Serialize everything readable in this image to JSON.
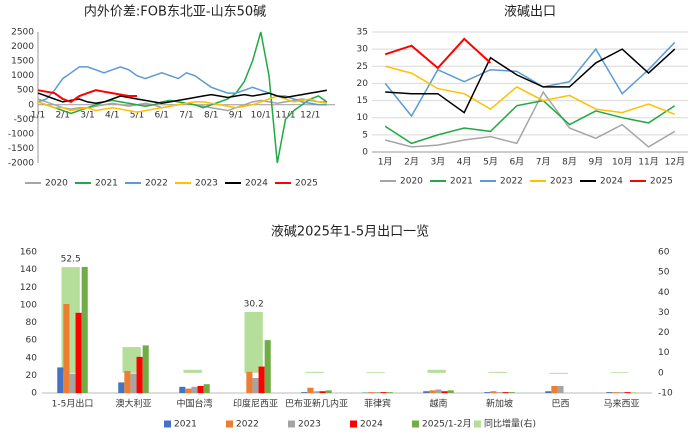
{
  "chart_data": [
    {
      "type": "line",
      "title": "内外价差:FOB东北亚-山东50碱",
      "categories": [
        "1/1",
        null,
        null,
        "2/1",
        null,
        null,
        "3/1",
        null,
        null,
        "4/1",
        null,
        null,
        "5/1",
        null,
        null,
        "6/1",
        null,
        null,
        "7/1",
        null,
        null,
        "8/1",
        null,
        null,
        "9/1",
        null,
        null,
        "10/1",
        null,
        null,
        "11/1",
        null,
        null,
        "12/1",
        null,
        null
      ],
      "ylim": [
        -2000,
        2500
      ],
      "yticks": [
        -2000,
        -1500,
        -1000,
        -500,
        0,
        500,
        1000,
        1500,
        2000,
        2500
      ],
      "grid": false,
      "series": [
        {
          "name": "2020",
          "color": "#a5a5a5",
          "values": [
            200,
            100,
            0,
            -100,
            -150,
            -100,
            -100,
            -50,
            0,
            50,
            0,
            -50,
            0,
            50,
            0,
            -100,
            -50,
            0,
            50,
            0,
            -50,
            -100,
            -150,
            -200,
            -100,
            0,
            100,
            150,
            100,
            50,
            100,
            150,
            200,
            150,
            100,
            100
          ]
        },
        {
          "name": "2021",
          "color": "#22a845",
          "values": [
            100,
            0,
            -100,
            -200,
            -300,
            -200,
            -100,
            0,
            100,
            150,
            100,
            50,
            0,
            -50,
            0,
            100,
            150,
            100,
            50,
            0,
            -100,
            0,
            100,
            200,
            400,
            800,
            1500,
            2500,
            1000,
            -2000,
            -500,
            -200,
            0,
            200,
            300,
            100
          ]
        },
        {
          "name": "2022",
          "color": "#5b9bd5",
          "values": [
            100,
            200,
            500,
            900,
            1100,
            1300,
            1300,
            1200,
            1100,
            1200,
            1300,
            1200,
            1000,
            900,
            1000,
            1100,
            1000,
            900,
            1100,
            1000,
            800,
            600,
            500,
            400,
            400,
            500,
            600,
            500,
            400,
            300,
            300,
            200,
            100,
            50,
            0,
            0
          ]
        },
        {
          "name": "2023",
          "color": "#ffc000",
          "values": [
            100,
            0,
            -100,
            -100,
            -200,
            -150,
            -100,
            -200,
            -150,
            -100,
            -150,
            -200,
            -250,
            -200,
            -150,
            -100,
            -50,
            0,
            50,
            100,
            100,
            50,
            0,
            -50,
            -100,
            -50,
            0,
            100,
            200,
            300,
            200,
            100,
            150,
            200,
            100,
            50
          ]
        },
        {
          "name": "2024",
          "color": "#000000",
          "values": [
            400,
            300,
            200,
            100,
            150,
            200,
            100,
            50,
            100,
            200,
            300,
            250,
            200,
            150,
            100,
            50,
            100,
            150,
            200,
            250,
            300,
            350,
            300,
            250,
            300,
            350,
            300,
            350,
            400,
            300,
            250,
            300,
            350,
            400,
            450,
            500
          ]
        },
        {
          "name": "2025",
          "color": "#ff0000",
          "values": [
            500,
            450,
            400,
            200,
            100,
            300,
            400,
            500,
            450,
            400,
            350,
            300,
            300,
            null,
            null,
            null,
            null,
            null,
            null,
            null,
            null,
            null,
            null,
            null,
            null,
            null,
            null,
            null,
            null,
            null,
            null,
            null,
            null,
            null,
            null,
            null
          ]
        }
      ]
    },
    {
      "type": "line",
      "title": "液碱出口",
      "categories": [
        "1月",
        "2月",
        "3月",
        "4月",
        "5月",
        "6月",
        "7月",
        "8月",
        "9月",
        "10月",
        "11月",
        "12月"
      ],
      "ylim": [
        0,
        35
      ],
      "yticks": [
        0,
        5,
        10,
        15,
        20,
        25,
        30,
        35
      ],
      "grid": true,
      "series": [
        {
          "name": "2020",
          "color": "#a5a5a5",
          "values": [
            3.5,
            1.5,
            2,
            3.5,
            4.5,
            2.5,
            17.5,
            7,
            4,
            8,
            1.5,
            6
          ]
        },
        {
          "name": "2021",
          "color": "#22a845",
          "values": [
            7.5,
            2.5,
            5,
            7,
            6,
            13.5,
            15,
            8,
            12,
            10,
            8.5,
            13.5
          ]
        },
        {
          "name": "2022",
          "color": "#5b9bd5",
          "values": [
            20,
            10.5,
            24,
            20.5,
            24,
            23.5,
            19,
            20.5,
            30,
            17,
            24,
            32
          ]
        },
        {
          "name": "2023",
          "color": "#ffc000",
          "values": [
            25,
            23,
            18.5,
            17,
            12.5,
            19,
            15,
            16.5,
            12.5,
            11.5,
            14,
            11
          ]
        },
        {
          "name": "2024",
          "color": "#000000",
          "values": [
            17.5,
            17,
            17,
            11.5,
            27.5,
            22.5,
            19,
            19,
            26,
            30,
            23,
            30
          ]
        },
        {
          "name": "2025",
          "color": "#ff0000",
          "values": [
            28.5,
            31,
            24.5,
            33,
            26,
            null,
            null,
            null,
            null,
            null,
            null,
            null
          ]
        }
      ]
    },
    {
      "type": "bar",
      "title": "液碱2025年1-5月出口一览",
      "categories": [
        "1-5月出口",
        "澳大利亚",
        "中国台湾",
        "印度尼西亚",
        "巴布亚新几内亚",
        "菲律宾",
        "越南",
        "新加坡",
        "巴西",
        "马来西亚"
      ],
      "ylim": [
        0,
        160
      ],
      "yticks": [
        0,
        20,
        40,
        60,
        80,
        100,
        120,
        140,
        160
      ],
      "y2lim": [
        -10,
        60
      ],
      "y2ticks": [
        -10,
        0,
        10,
        20,
        30,
        40,
        50,
        60
      ],
      "grid": false,
      "series": [
        {
          "name": "2021",
          "color": "#4472c4",
          "values": [
            29,
            12,
            7,
            0,
            1,
            0.5,
            2,
            1,
            2,
            1
          ]
        },
        {
          "name": "2022",
          "color": "#ed7d31",
          "values": [
            101,
            25,
            5,
            24,
            6,
            1,
            3,
            2,
            8,
            1
          ]
        },
        {
          "name": "2023",
          "color": "#a5a5a5",
          "values": [
            22,
            22,
            7,
            17,
            2,
            1,
            4,
            1,
            8,
            1
          ]
        },
        {
          "name": "2024",
          "color": "#ff0000",
          "values": [
            91,
            41,
            8,
            30,
            2,
            1,
            2,
            1,
            0,
            1
          ]
        },
        {
          "name": "2025/1-2月",
          "color": "#70ad47",
          "values": [
            143,
            54,
            10,
            60,
            3,
            1,
            3,
            1,
            0,
            0.5
          ]
        },
        {
          "name": "同比增量(右)",
          "color": "#b4de9a",
          "axis": "y2",
          "values": [
            52.5,
            12.8,
            1.5,
            30.2,
            0.5,
            0.3,
            1.5,
            0.5,
            -0.5,
            0.3
          ],
          "value_labels": [
            "52.5",
            null,
            null,
            "30.2",
            null,
            null,
            null,
            null,
            null,
            null
          ]
        }
      ]
    }
  ]
}
